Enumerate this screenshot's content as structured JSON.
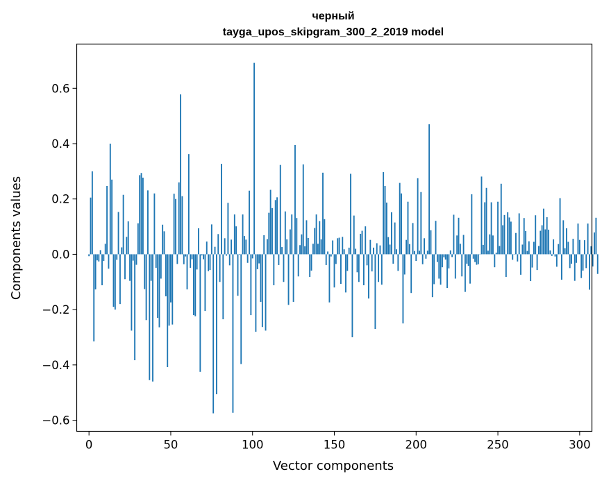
{
  "chart_data": {
    "type": "bar",
    "title": "черный",
    "subtitle": "tayga_upos_skipgram_300_2_2019 model",
    "xlabel": "Vector components",
    "ylabel": "Components values",
    "xlim": [
      -7.5,
      307.5
    ],
    "ylim": [
      -0.64,
      0.76
    ],
    "xticks": [
      0,
      50,
      100,
      150,
      200,
      250,
      300
    ],
    "yticks": [
      -0.6,
      -0.4,
      -0.2,
      0.0,
      0.2,
      0.4,
      0.6
    ],
    "ytick_labels": [
      "−0.6",
      "−0.4",
      "−0.2",
      "0.0",
      "0.2",
      "0.4",
      "0.6"
    ],
    "bar_color": "#1f77b4",
    "grid": false,
    "values": [
      -0.007,
      0.205,
      0.3,
      -0.315,
      -0.127,
      -0.022,
      -0.026,
      0.015,
      -0.112,
      -0.024,
      0.038,
      0.247,
      -0.052,
      0.4,
      0.27,
      -0.19,
      -0.2,
      -0.02,
      0.153,
      -0.18,
      0.025,
      0.215,
      -0.09,
      0.063,
      0.119,
      -0.096,
      -0.276,
      -0.023,
      -0.383,
      -0.038,
      0.112,
      0.286,
      0.294,
      0.277,
      -0.126,
      -0.238,
      0.231,
      -0.455,
      -0.096,
      -0.46,
      0.22,
      -0.049,
      -0.23,
      -0.264,
      -0.088,
      0.107,
      0.083,
      -0.152,
      -0.408,
      -0.258,
      -0.174,
      -0.254,
      0.219,
      0.2,
      -0.035,
      0.26,
      0.578,
      0.21,
      -0.036,
      -0.008,
      -0.127,
      0.362,
      -0.049,
      -0.018,
      -0.22,
      -0.224,
      -0.055,
      0.094,
      -0.425,
      -0.004,
      -0.018,
      -0.205,
      0.046,
      -0.061,
      -0.057,
      0.108,
      -0.575,
      0.027,
      -0.506,
      0.073,
      -0.1,
      0.327,
      -0.235,
      0.058,
      -0.005,
      0.186,
      -0.04,
      0.053,
      -0.573,
      0.144,
      0.101,
      -0.15,
      -0.002,
      -0.397,
      0.144,
      0.066,
      0.053,
      -0.031,
      0.23,
      -0.22,
      -0.015,
      0.692,
      -0.28,
      -0.054,
      -0.033,
      -0.172,
      -0.263,
      0.069,
      -0.276,
      0.055,
      0.15,
      0.233,
      0.167,
      -0.112,
      0.196,
      0.206,
      -0.039,
      0.323,
      0.026,
      -0.1,
      0.155,
      0.054,
      -0.183,
      0.09,
      0.144,
      -0.172,
      0.395,
      0.131,
      -0.08,
      0.033,
      0.072,
      0.325,
      0.029,
      0.123,
      0.059,
      -0.082,
      -0.059,
      0.038,
      0.095,
      0.144,
      0.038,
      0.12,
      0.054,
      0.295,
      0.127,
      -0.039,
      0.01,
      -0.174,
      -0.008,
      0.05,
      -0.12,
      -0.035,
      0.058,
      0.06,
      -0.107,
      0.063,
      0.018,
      -0.138,
      -0.06,
      0.024,
      0.291,
      -0.3,
      0.14,
      0.02,
      -0.065,
      -0.1,
      0.074,
      0.085,
      -0.112,
      0.101,
      -0.04,
      -0.16,
      0.052,
      -0.062,
      0.024,
      -0.27,
      0.04,
      -0.1,
      0.032,
      -0.11,
      0.297,
      0.247,
      0.187,
      0.062,
      0.035,
      0.152,
      -0.034,
      0.115,
      0.018,
      -0.06,
      0.258,
      0.22,
      -0.25,
      -0.073,
      0.052,
      0.19,
      0.037,
      -0.14,
      0.113,
      0.012,
      -0.024,
      0.275,
      0.013,
      0.225,
      -0.036,
      0.058,
      -0.016,
      0.013,
      0.47,
      0.087,
      -0.155,
      -0.108,
      0.121,
      -0.028,
      -0.088,
      -0.11,
      -0.047,
      -0.011,
      -0.019,
      -0.122,
      -0.051,
      0.014,
      -0.01,
      0.143,
      -0.088,
      0.068,
      0.132,
      0.038,
      -0.08,
      0.07,
      -0.136,
      -0.034,
      -0.042,
      -0.106,
      0.217,
      -0.016,
      -0.028,
      -0.038,
      -0.036,
      0.0,
      0.281,
      0.034,
      0.188,
      0.24,
      0.013,
      0.072,
      0.188,
      0.068,
      -0.047,
      0.006,
      0.19,
      0.03,
      0.255,
      0.105,
      0.142,
      -0.082,
      0.152,
      0.133,
      0.118,
      -0.02,
      0.001,
      0.077,
      -0.026,
      0.148,
      -0.074,
      0.035,
      0.131,
      0.084,
      0.012,
      0.047,
      -0.097,
      -0.048,
      0.045,
      0.141,
      -0.057,
      0.03,
      0.085,
      0.105,
      0.165,
      0.09,
      0.134,
      0.089,
      0.014,
      -0.006,
      0.054,
      -0.008,
      -0.045,
      0.037,
      0.203,
      -0.092,
      0.123,
      0.022,
      0.094,
      0.045,
      -0.05,
      -0.034,
      0.056,
      -0.096,
      -0.031,
      0.111,
      0.052,
      -0.086,
      -0.059,
      0.051,
      -0.05,
      0.111,
      -0.128,
      0.029,
      -0.044,
      0.079,
      0.132,
      -0.071
    ]
  }
}
